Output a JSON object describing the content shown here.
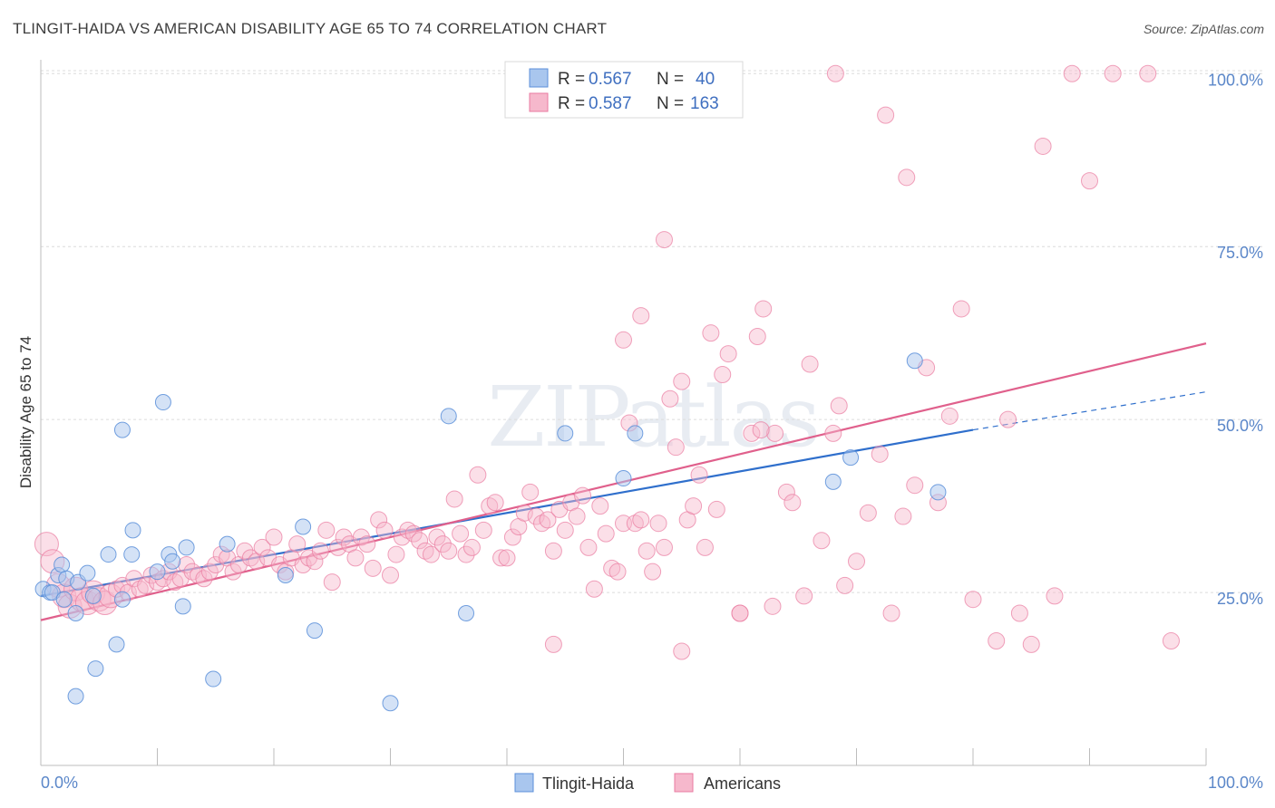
{
  "title": "TLINGIT-HAIDA VS AMERICAN DISABILITY AGE 65 TO 74 CORRELATION CHART",
  "source": "Source: ZipAtlas.com",
  "watermark": "ZIPatlas",
  "colors": {
    "blue": "#5b8fd9",
    "blue_fill": "#a9c6ee",
    "blue_line": "#2f6fcc",
    "pink": "#e97aa0",
    "pink_fill": "#f6b8cc",
    "pink_line": "#e0608c",
    "axis_text": "#5b87c9"
  },
  "legend": {
    "rows": [
      {
        "r_label": "R =",
        "r_value": "0.567",
        "n_label": "N =",
        "n_value": "40"
      },
      {
        "r_label": "R =",
        "r_value": "0.587",
        "n_label": "N =",
        "n_value": "163"
      }
    ]
  },
  "bottom_legend": [
    "Tlingit-Haida",
    "Americans"
  ],
  "chart_data": {
    "type": "scatter",
    "title": "TLINGIT-HAIDA VS AMERICAN DISABILITY AGE 65 TO 74 CORRELATION CHART",
    "xlabel": "",
    "ylabel": "Disability Age 65 to 74",
    "xlim": [
      0,
      100
    ],
    "ylim": [
      0,
      102
    ],
    "x_tick_labels": [
      "0.0%",
      "100.0%"
    ],
    "y_tick_labels": [
      "25.0%",
      "50.0%",
      "75.0%",
      "100.0%"
    ],
    "y_ticks": [
      25,
      50,
      75,
      100
    ],
    "grid": true,
    "series": [
      {
        "name": "Tlingit-Haida",
        "r": 0.567,
        "n": 40,
        "trend": {
          "x0": 0,
          "y0": 24.5,
          "x1": 80,
          "y1": 48.5,
          "dash_to_x": 100,
          "dash_to_y": 54
        },
        "points": [
          [
            0.2,
            25.5
          ],
          [
            0.8,
            25
          ],
          [
            1.5,
            27.5
          ],
          [
            1.8,
            29
          ],
          [
            2.2,
            27
          ],
          [
            3,
            22
          ],
          [
            3.2,
            26.5
          ],
          [
            4,
            27.8
          ],
          [
            4.5,
            24.5
          ],
          [
            4.7,
            14
          ],
          [
            6.5,
            17.5
          ],
          [
            7,
            24
          ],
          [
            5.8,
            30.5
          ],
          [
            7.8,
            30.5
          ],
          [
            7.9,
            34
          ],
          [
            10,
            28
          ],
          [
            10.5,
            52.5
          ],
          [
            11,
            30.5
          ],
          [
            11.3,
            29.5
          ],
          [
            12.5,
            31.5
          ],
          [
            12.2,
            23
          ],
          [
            14.8,
            12.5
          ],
          [
            16,
            32
          ],
          [
            21,
            27.5
          ],
          [
            22.5,
            34.5
          ],
          [
            23.5,
            19.5
          ],
          [
            30,
            9
          ],
          [
            35,
            50.5
          ],
          [
            36.5,
            22
          ],
          [
            3,
            10
          ],
          [
            7,
            48.5
          ],
          [
            45,
            48
          ],
          [
            50,
            41.5
          ],
          [
            51,
            48
          ],
          [
            68,
            41
          ],
          [
            69.5,
            44.5
          ],
          [
            75,
            58.5
          ],
          [
            77,
            39.5
          ],
          [
            1,
            25
          ],
          [
            2,
            24
          ]
        ]
      },
      {
        "name": "Americans",
        "r": 0.587,
        "n": 163,
        "trend": {
          "x0": 0,
          "y0": 21,
          "x1": 100,
          "y1": 61
        },
        "points": [
          [
            0.5,
            32
          ],
          [
            1,
            29.5
          ],
          [
            1.5,
            26
          ],
          [
            2,
            24.5
          ],
          [
            2.5,
            23
          ],
          [
            3,
            25.5
          ],
          [
            3.5,
            24
          ],
          [
            4,
            23.5
          ],
          [
            4.5,
            25
          ],
          [
            5,
            24
          ],
          [
            5.5,
            23.5
          ],
          [
            6,
            24.5
          ],
          [
            6.5,
            25.5
          ],
          [
            7,
            26
          ],
          [
            7.5,
            25
          ],
          [
            8,
            27
          ],
          [
            8.5,
            25.5
          ],
          [
            9,
            26
          ],
          [
            9.5,
            27.5
          ],
          [
            10,
            26.5
          ],
          [
            10.5,
            27
          ],
          [
            11,
            28
          ],
          [
            11.5,
            26.5
          ],
          [
            12,
            27
          ],
          [
            12.5,
            29
          ],
          [
            13,
            28
          ],
          [
            13.5,
            27.5
          ],
          [
            14,
            27
          ],
          [
            14.5,
            28
          ],
          [
            15,
            29
          ],
          [
            15.5,
            30.5
          ],
          [
            16,
            30
          ],
          [
            16.5,
            28
          ],
          [
            17,
            29
          ],
          [
            17.5,
            31
          ],
          [
            18,
            30
          ],
          [
            18.5,
            29.5
          ],
          [
            19,
            31.5
          ],
          [
            19.5,
            30
          ],
          [
            20,
            33
          ],
          [
            20.5,
            29
          ],
          [
            21,
            28
          ],
          [
            21.5,
            30
          ],
          [
            22,
            32
          ],
          [
            22.5,
            29
          ],
          [
            23,
            30
          ],
          [
            23.5,
            29.5
          ],
          [
            24,
            31
          ],
          [
            24.5,
            34
          ],
          [
            25,
            26.5
          ],
          [
            25.5,
            31.5
          ],
          [
            26,
            33
          ],
          [
            26.5,
            32
          ],
          [
            27,
            30
          ],
          [
            27.5,
            33
          ],
          [
            28,
            32
          ],
          [
            28.5,
            28.5
          ],
          [
            29,
            35.5
          ],
          [
            29.5,
            34
          ],
          [
            30,
            27.5
          ],
          [
            30.5,
            30.5
          ],
          [
            31,
            33
          ],
          [
            31.5,
            34
          ],
          [
            32,
            33.5
          ],
          [
            32.5,
            32.5
          ],
          [
            33,
            31
          ],
          [
            33.5,
            30.5
          ],
          [
            34,
            33
          ],
          [
            34.5,
            32
          ],
          [
            35,
            31
          ],
          [
            35.5,
            38.5
          ],
          [
            36,
            33.5
          ],
          [
            36.5,
            30.5
          ],
          [
            37,
            31.5
          ],
          [
            37.5,
            42
          ],
          [
            38,
            34
          ],
          [
            38.5,
            37.5
          ],
          [
            39,
            38
          ],
          [
            39.5,
            30
          ],
          [
            40,
            30
          ],
          [
            40.5,
            33
          ],
          [
            41,
            34.5
          ],
          [
            41.5,
            36.5
          ],
          [
            42,
            39.5
          ],
          [
            42.5,
            36
          ],
          [
            43,
            35
          ],
          [
            43.5,
            35.5
          ],
          [
            44,
            31
          ],
          [
            44.5,
            37
          ],
          [
            45,
            34
          ],
          [
            45.5,
            38
          ],
          [
            46,
            36
          ],
          [
            46.5,
            39
          ],
          [
            47,
            31.5
          ],
          [
            47.5,
            25.5
          ],
          [
            48,
            37.5
          ],
          [
            48.5,
            33.5
          ],
          [
            49,
            28.5
          ],
          [
            49.5,
            28
          ],
          [
            50,
            35
          ],
          [
            50.5,
            49.5
          ],
          [
            51,
            35
          ],
          [
            51.5,
            35.5
          ],
          [
            52,
            31
          ],
          [
            52.5,
            28
          ],
          [
            53,
            35
          ],
          [
            53.5,
            31.5
          ],
          [
            54,
            53
          ],
          [
            54.5,
            46
          ],
          [
            55,
            55.5
          ],
          [
            55.5,
            35.5
          ],
          [
            56,
            37.5
          ],
          [
            56.5,
            42
          ],
          [
            57,
            31.5
          ],
          [
            57.5,
            62.5
          ],
          [
            58,
            37
          ],
          [
            58.5,
            56.5
          ],
          [
            59,
            59.5
          ],
          [
            60,
            22
          ],
          [
            61,
            48
          ],
          [
            61.5,
            62
          ],
          [
            62,
            66
          ],
          [
            63,
            48
          ],
          [
            64,
            39.5
          ],
          [
            64.5,
            38
          ],
          [
            66,
            58
          ],
          [
            67,
            32.5
          ],
          [
            68,
            48
          ],
          [
            69,
            26
          ],
          [
            70,
            29.5
          ],
          [
            71,
            36.5
          ],
          [
            72,
            45
          ],
          [
            73,
            22
          ],
          [
            74,
            36
          ],
          [
            75,
            40.5
          ],
          [
            76,
            57.5
          ],
          [
            77,
            38
          ],
          [
            78,
            50.5
          ],
          [
            79,
            66
          ],
          [
            80,
            24
          ],
          [
            82,
            18
          ],
          [
            83,
            50
          ],
          [
            84,
            22
          ],
          [
            85,
            17.5
          ],
          [
            86,
            89.5
          ],
          [
            87,
            24.5
          ],
          [
            88.5,
            100
          ],
          [
            90,
            84.5
          ],
          [
            92,
            100
          ],
          [
            95,
            100
          ],
          [
            97,
            18
          ],
          [
            68.2,
            100
          ],
          [
            72.5,
            94
          ],
          [
            74.3,
            85
          ],
          [
            53.5,
            76
          ],
          [
            50,
            61.5
          ],
          [
            51.5,
            65
          ],
          [
            44,
            17.5
          ],
          [
            62.8,
            23
          ],
          [
            65.5,
            24.5
          ],
          [
            60,
            22
          ],
          [
            55,
            16.5
          ],
          [
            68.5,
            52
          ],
          [
            61.8,
            48.5
          ]
        ]
      }
    ]
  }
}
